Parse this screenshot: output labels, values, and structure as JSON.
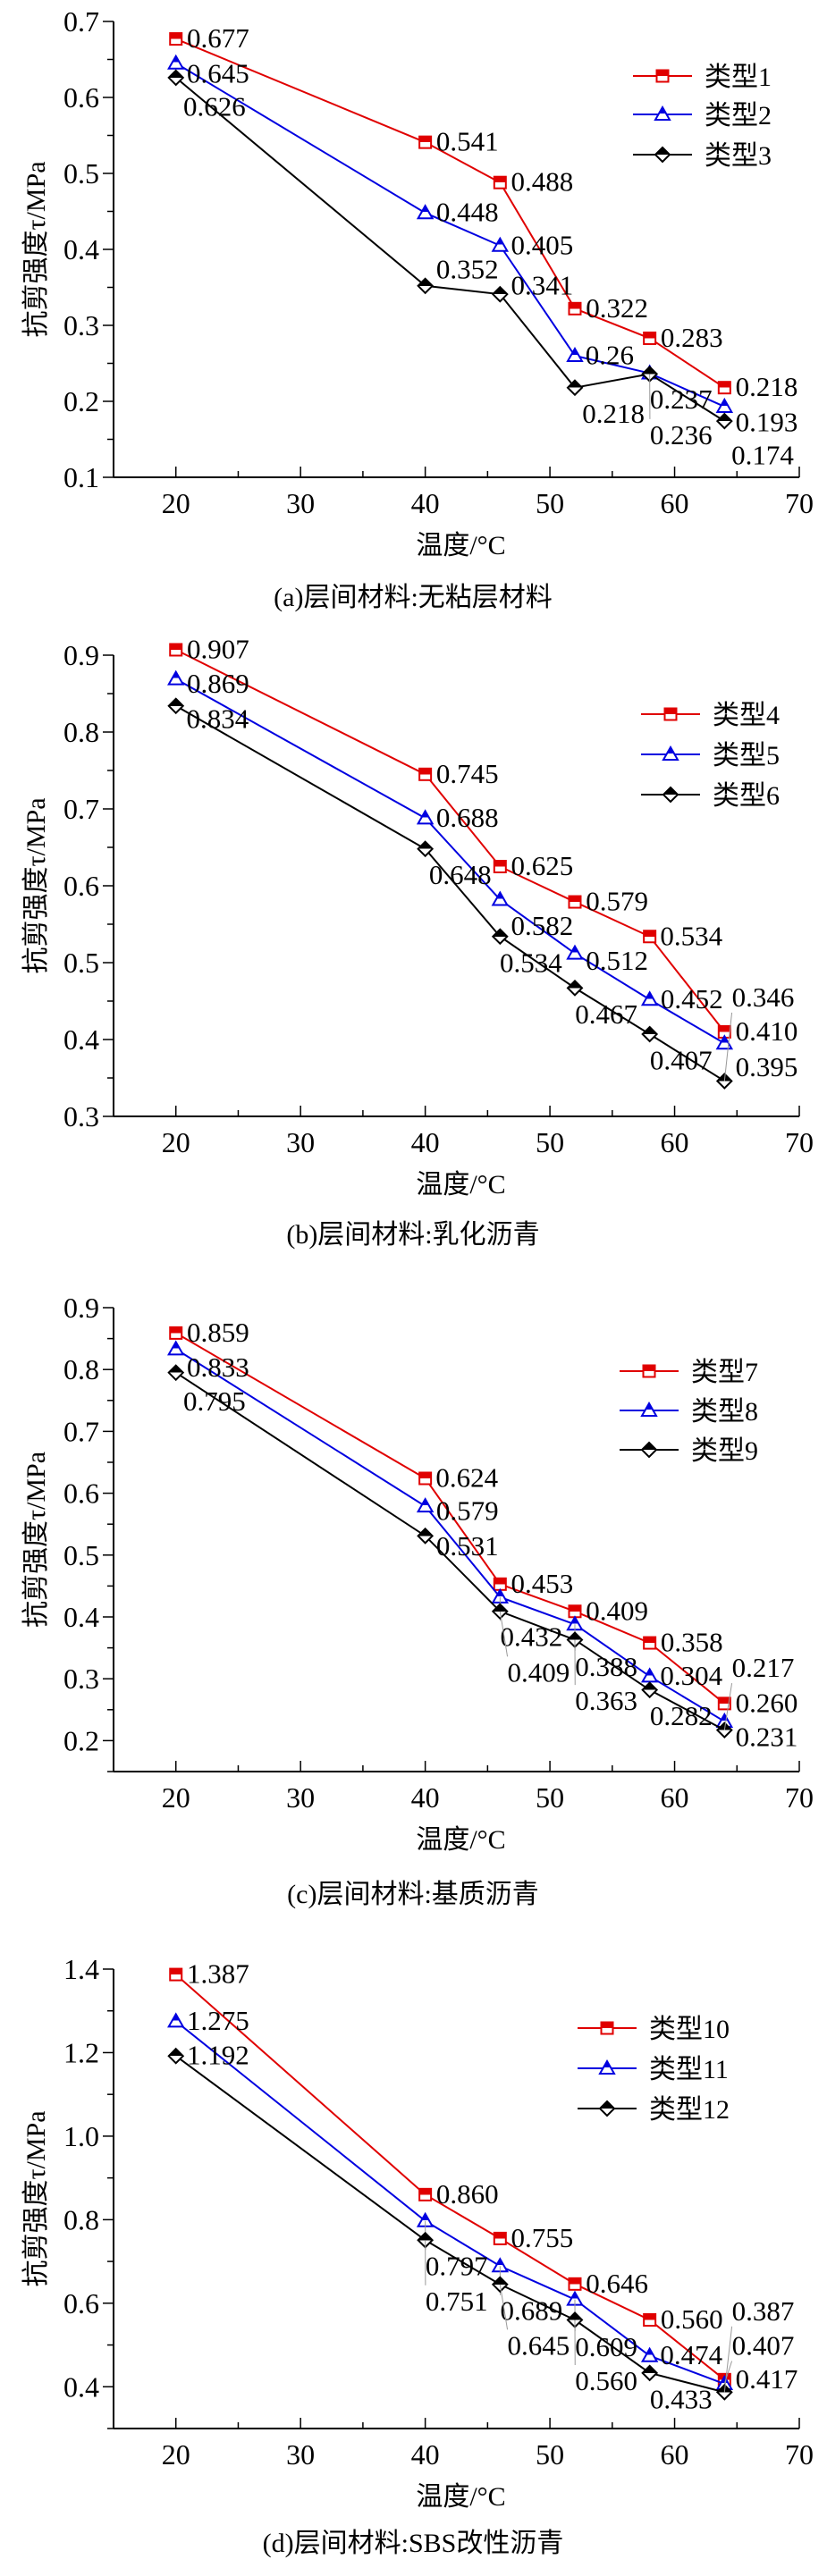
{
  "colors": {
    "series1": "#e00000",
    "series2": "#0000e0",
    "series3": "#000000"
  },
  "chart_data": [
    {
      "type": "line",
      "caption": "(a)层间材料:无粘层材料",
      "xlabel": "温度/°C",
      "ylabel": "抗剪强度τ/MPa",
      "xlim": [
        15,
        70
      ],
      "ylim": [
        0.1,
        0.7
      ],
      "xticks": [
        20,
        30,
        40,
        50,
        60,
        70
      ],
      "yticks": [
        "0.1",
        "0.2",
        "0.3",
        "0.4",
        "0.5",
        "0.6",
        "0.7"
      ],
      "grid": false,
      "legend": "top-right",
      "x": [
        20,
        40,
        46,
        52,
        58,
        64
      ],
      "series": [
        {
          "name": "类型1",
          "marker": "square",
          "values": [
            0.677,
            0.541,
            0.488,
            0.322,
            0.283,
            0.218
          ],
          "labels": [
            "0.677",
            "0.541",
            "0.488",
            "0.322",
            "0.283",
            "0.218"
          ]
        },
        {
          "name": "类型2",
          "marker": "triangle",
          "values": [
            0.645,
            0.448,
            0.405,
            0.26,
            0.237,
            0.193
          ],
          "labels": [
            "0.645",
            "0.448",
            "0.405",
            "0.26",
            "0.237",
            "0.193"
          ]
        },
        {
          "name": "类型3",
          "marker": "diamond",
          "values": [
            0.626,
            0.352,
            0.341,
            0.218,
            0.236,
            0.174
          ],
          "labels": [
            "0.626",
            "0.352",
            "0.341",
            "0.218",
            "0.236",
            "0.174"
          ]
        }
      ]
    },
    {
      "type": "line",
      "caption": "(b)层间材料:乳化沥青",
      "xlabel": "温度/°C",
      "ylabel": "抗剪强度τ/MPa",
      "xlim": [
        15,
        70
      ],
      "ylim": [
        0.3,
        0.9
      ],
      "xticks": [
        20,
        30,
        40,
        50,
        60,
        70
      ],
      "yticks": [
        "0.3",
        "0.4",
        "0.5",
        "0.6",
        "0.7",
        "0.8",
        "0.9"
      ],
      "grid": false,
      "legend": "top-right",
      "x": [
        20,
        40,
        46,
        52,
        58,
        64
      ],
      "series": [
        {
          "name": "类型4",
          "marker": "square",
          "values": [
            0.907,
            0.745,
            0.625,
            0.579,
            0.534,
            0.41
          ],
          "labels": [
            "0.907",
            "0.745",
            "0.625",
            "0.579",
            "0.534",
            "0.410"
          ]
        },
        {
          "name": "类型5",
          "marker": "triangle",
          "values": [
            0.869,
            0.688,
            0.582,
            0.512,
            0.452,
            0.395
          ],
          "labels": [
            "0.869",
            "0.688",
            "0.582",
            "0.512",
            "0.452",
            "0.395"
          ]
        },
        {
          "name": "类型6",
          "marker": "diamond",
          "values": [
            0.834,
            0.648,
            0.534,
            0.467,
            0.407,
            0.346
          ],
          "labels": [
            "0.834",
            "0.648",
            "0.534",
            "0.467",
            "0.407",
            "0.346"
          ]
        }
      ]
    },
    {
      "type": "line",
      "caption": "(c)层间材料:基质沥青",
      "xlabel": "温度/°C",
      "ylabel": "抗剪强度τ/MPa",
      "xlim": [
        15,
        70
      ],
      "ylim": [
        0.15,
        0.9
      ],
      "xticks": [
        20,
        30,
        40,
        50,
        60,
        70
      ],
      "yticks": [
        "0.2",
        "0.3",
        "0.4",
        "0.5",
        "0.6",
        "0.7",
        "0.8",
        "0.9"
      ],
      "grid": false,
      "legend": "top-right",
      "x": [
        20,
        40,
        46,
        52,
        58,
        64
      ],
      "series": [
        {
          "name": "类型7",
          "marker": "square",
          "values": [
            0.859,
            0.624,
            0.453,
            0.409,
            0.358,
            0.26
          ],
          "labels": [
            "0.859",
            "0.624",
            "0.453",
            "0.409",
            "0.358",
            "0.260"
          ]
        },
        {
          "name": "类型8",
          "marker": "triangle",
          "values": [
            0.833,
            0.579,
            0.432,
            0.388,
            0.304,
            0.231
          ],
          "labels": [
            "0.833",
            "0.579",
            "0.432",
            "0.388",
            "0.304",
            "0.231"
          ]
        },
        {
          "name": "类型9",
          "marker": "diamond",
          "values": [
            0.795,
            0.531,
            0.409,
            0.363,
            0.282,
            0.217
          ],
          "labels": [
            "0.795",
            "0.531",
            "0.409",
            "0.363",
            "0.282",
            "0.217"
          ]
        }
      ]
    },
    {
      "type": "line",
      "caption": "(d)层间材料:SBS改性沥青",
      "xlabel": "温度/°C",
      "ylabel": "抗剪强度τ/MPa",
      "xlim": [
        15,
        70
      ],
      "ylim": [
        0.3,
        1.4
      ],
      "xticks": [
        20,
        30,
        40,
        50,
        60,
        70
      ],
      "yticks": [
        "0.4",
        "0.6",
        "0.8",
        "1.0",
        "1.2",
        "1.4"
      ],
      "grid": false,
      "legend": "top-right",
      "x": [
        20,
        40,
        46,
        52,
        58,
        64
      ],
      "series": [
        {
          "name": "类型10",
          "marker": "square",
          "values": [
            1.387,
            0.86,
            0.755,
            0.646,
            0.56,
            0.417
          ],
          "labels": [
            "1.387",
            "0.860",
            "0.755",
            "0.646",
            "0.560",
            "0.417"
          ]
        },
        {
          "name": "类型11",
          "marker": "triangle",
          "values": [
            1.275,
            0.797,
            0.689,
            0.609,
            0.474,
            0.407
          ],
          "labels": [
            "1.275",
            "0.797",
            "0.689",
            "0.609",
            "0.474",
            "0.407"
          ]
        },
        {
          "name": "类型12",
          "marker": "diamond",
          "values": [
            1.192,
            0.751,
            0.645,
            0.56,
            0.433,
            0.387
          ],
          "labels": [
            "1.192",
            "0.751",
            "0.645",
            "0.560",
            "0.433",
            "0.387"
          ]
        }
      ]
    }
  ]
}
